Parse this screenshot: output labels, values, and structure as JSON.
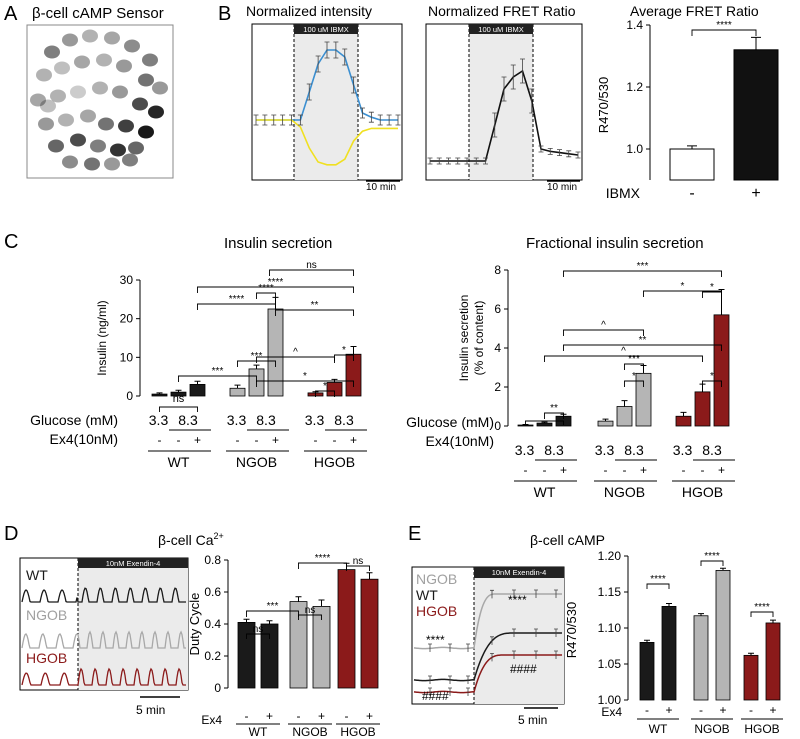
{
  "panels": {
    "A": {
      "letter": "A",
      "title": "β-cell cAMP Sensor"
    },
    "B": {
      "letter": "B",
      "title_intensity": "Normalized intensity",
      "title_fret": "Normalized FRET Ratio",
      "title_avg": "Average FRET Ratio",
      "treatment": "100 uM IBMX",
      "scale": "10 min"
    },
    "C": {
      "letter": "C",
      "title_left": "Insulin secretion",
      "title_right": "Fractional insulin secretion"
    },
    "D": {
      "letter": "D",
      "title": "β-cell Ca",
      "title_sup": "2+",
      "treatment": "10nM Exendin-4",
      "scale": "5 min",
      "traces": [
        "WT",
        "NGOB",
        "HGOB"
      ]
    },
    "E": {
      "letter": "E",
      "title": "β-cell cAMP",
      "treatment": "10nM Exendin-4",
      "scale": "5 min",
      "traces": [
        "NGOB",
        "WT",
        "HGOB"
      ],
      "sig_plus": "****",
      "sig_hash": "####"
    }
  },
  "colors": {
    "wt": "#1a1a1a",
    "ngob": "#b5b5b5",
    "hgob": "#8b1a1a",
    "blue": "#3b8fd1",
    "yellow": "#f0e020",
    "shade": "#ebebeb"
  },
  "chart_data": [
    {
      "id": "B-intensity",
      "type": "line",
      "title": "Normalized intensity",
      "xlabel": "",
      "ylabel": "",
      "series": [
        {
          "name": "blue channel",
          "color": "#3b8fd1",
          "values": [
            0.5,
            0.5,
            0.5,
            0.5,
            0.5,
            0.5,
            0.7,
            0.9,
            1.0,
            1.0,
            0.95,
            0.75,
            0.55,
            0.52,
            0.5,
            0.5,
            0.5
          ]
        },
        {
          "name": "yellow channel",
          "color": "#f0e020",
          "values": [
            0.5,
            0.5,
            0.5,
            0.5,
            0.5,
            0.45,
            0.3,
            0.2,
            0.18,
            0.18,
            0.22,
            0.35,
            0.42,
            0.44,
            0.44,
            0.44,
            0.44
          ]
        }
      ]
    },
    {
      "id": "B-fret",
      "type": "line",
      "title": "Normalized FRET Ratio",
      "series": [
        {
          "name": "FRET",
          "values": [
            0.2,
            0.2,
            0.2,
            0.2,
            0.2,
            0.2,
            0.2,
            0.5,
            0.8,
            0.9,
            0.95,
            0.7,
            0.3,
            0.28,
            0.27,
            0.26,
            0.25
          ]
        }
      ]
    },
    {
      "id": "B-avg",
      "type": "bar",
      "title": "Average FRET Ratio",
      "ylabel": "R470/530",
      "xlabel": "IBMX",
      "categories": [
        "-",
        "+"
      ],
      "values": [
        1.0,
        1.32
      ],
      "errors": [
        0.01,
        0.04
      ],
      "ylim": [
        0.9,
        1.4
      ],
      "yticks": [
        1.0,
        1.2,
        1.4
      ],
      "significance": "****"
    },
    {
      "id": "C-insulin",
      "type": "bar",
      "title": "Insulin secretion",
      "ylabel": "Insulin (ng/ml)",
      "ylim": [
        0,
        30
      ],
      "yticks": [
        0,
        10,
        20,
        30
      ],
      "row_labels": {
        "glucose": "Glucose (mM)",
        "ex4": "Ex4(10nM)"
      },
      "groups": [
        {
          "name": "WT",
          "glucose": [
            "3.3",
            "8.3"
          ],
          "values": [
            0.5,
            1.0,
            3.0
          ],
          "errors": [
            0.3,
            0.5,
            0.8
          ]
        },
        {
          "name": "NGOB",
          "glucose": [
            "3.3",
            "8.3"
          ],
          "values": [
            2.0,
            7.0,
            22.5
          ],
          "errors": [
            0.8,
            1.0,
            3.0
          ]
        },
        {
          "name": "HGOB",
          "glucose": [
            "3.3",
            "8.3"
          ],
          "values": [
            0.8,
            3.5,
            10.8
          ],
          "errors": [
            0.3,
            0.8,
            2.0
          ]
        }
      ],
      "ex4": [
        "-",
        "-",
        "+"
      ],
      "sig": [
        "ns",
        "****",
        "****",
        "ns",
        "**",
        "****",
        "***",
        "^",
        "*",
        "*",
        "*"
      ]
    },
    {
      "id": "C-fractional",
      "type": "bar",
      "title": "Fractional insulin secretion",
      "ylabel": "Insulin secretion (% of content)",
      "ylim": [
        0,
        8
      ],
      "yticks": [
        0,
        2,
        4,
        6,
        8
      ],
      "groups": [
        {
          "name": "WT",
          "glucose": [
            "3.3",
            "8.3"
          ],
          "values": [
            0.05,
            0.15,
            0.5
          ],
          "errors": [
            0.03,
            0.05,
            0.1
          ]
        },
        {
          "name": "NGOB",
          "glucose": [
            "3.3",
            "8.3"
          ],
          "values": [
            0.25,
            1.0,
            2.7
          ],
          "errors": [
            0.1,
            0.3,
            0.4
          ]
        },
        {
          "name": "HGOB",
          "glucose": [
            "3.3",
            "8.3"
          ],
          "values": [
            0.5,
            1.75,
            5.7
          ],
          "errors": [
            0.2,
            0.4,
            1.3
          ]
        }
      ],
      "ex4": [
        "-",
        "-",
        "+"
      ],
      "sig": [
        "***",
        "*",
        "*",
        "^",
        "**",
        "^",
        "***",
        "*",
        "*",
        "**",
        "*"
      ]
    },
    {
      "id": "D-duty",
      "type": "bar",
      "ylabel": "Duty Cycle",
      "ylim": [
        0,
        0.8
      ],
      "yticks": [
        0,
        0.2,
        0.4,
        0.6,
        0.8
      ],
      "xlabel": "Ex4",
      "groups": [
        {
          "name": "WT",
          "values": [
            0.41,
            0.4
          ],
          "errors": [
            0.02,
            0.02
          ]
        },
        {
          "name": "NGOB",
          "values": [
            0.54,
            0.51
          ],
          "errors": [
            0.03,
            0.04
          ]
        },
        {
          "name": "HGOB",
          "values": [
            0.74,
            0.68
          ],
          "errors": [
            0.04,
            0.04
          ]
        }
      ],
      "ex4": [
        "-",
        "+"
      ],
      "sig": [
        "ns",
        "ns",
        "ns",
        "***",
        "****"
      ]
    },
    {
      "id": "E-ratio",
      "type": "bar",
      "ylabel": "R470/530",
      "ylim": [
        1.0,
        1.2
      ],
      "yticks": [
        1.0,
        1.05,
        1.1,
        1.15,
        1.2
      ],
      "xlabel": "Ex4",
      "groups": [
        {
          "name": "WT",
          "values": [
            1.08,
            1.13
          ],
          "errors": [
            0.003,
            0.004
          ]
        },
        {
          "name": "NGOB",
          "values": [
            1.117,
            1.18
          ],
          "errors": [
            0.003,
            0.003
          ]
        },
        {
          "name": "HGOB",
          "values": [
            1.062,
            1.107
          ],
          "errors": [
            0.003,
            0.004
          ]
        }
      ],
      "ex4": [
        "-",
        "+"
      ],
      "sig": [
        "****",
        "****",
        "****"
      ]
    }
  ]
}
